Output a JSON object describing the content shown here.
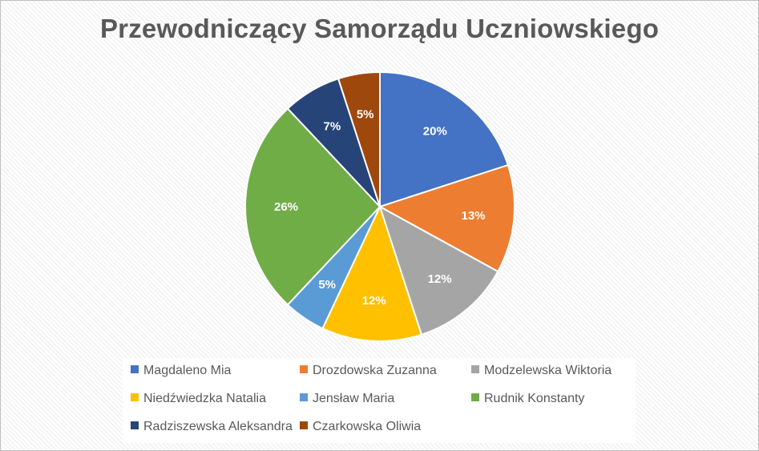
{
  "chart_data": {
    "type": "pie",
    "title": "Przewodniczący Samorządu Uczniowskiego",
    "legend_position": "bottom",
    "slices": [
      {
        "name": "Magdaleno Mia",
        "value": 20,
        "label": "20%",
        "color": "#4472C4"
      },
      {
        "name": "Drozdowska Zuzanna",
        "value": 13,
        "label": "13%",
        "color": "#ED7D31"
      },
      {
        "name": "Modzelewska Wiktoria",
        "value": 12,
        "label": "12%",
        "color": "#A5A5A5"
      },
      {
        "name": "Niedźwiedzka Natalia",
        "value": 12,
        "label": "12%",
        "color": "#FFC000"
      },
      {
        "name": "Jensław Maria",
        "value": 5,
        "label": "5%",
        "color": "#5B9BD5"
      },
      {
        "name": "Rudnik Konstanty",
        "value": 26,
        "label": "26%",
        "color": "#70AD47"
      },
      {
        "name": "Radziszewska Aleksandra",
        "value": 7,
        "label": "7%",
        "color": "#264478"
      },
      {
        "name": "Czarkowska Oliwia",
        "value": 5,
        "label": "5%",
        "color": "#9E480E"
      }
    ]
  }
}
